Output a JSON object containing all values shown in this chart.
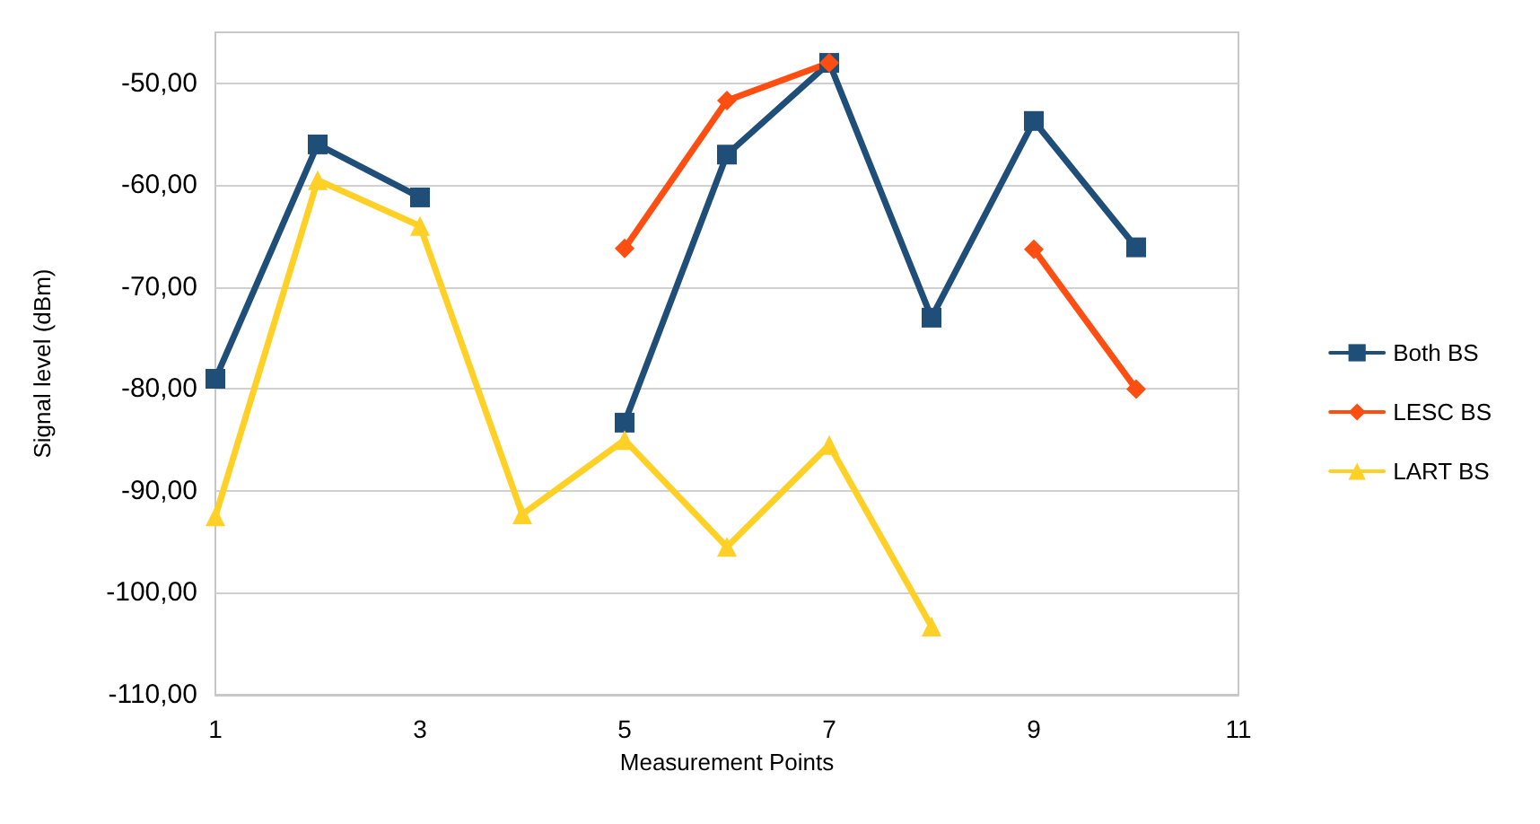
{
  "chart_data": {
    "type": "line",
    "xlabel": "Measurement Points",
    "ylabel": "Signal level (dBm)",
    "x": [
      1,
      2,
      3,
      4,
      5,
      6,
      7,
      8,
      9,
      10
    ],
    "xlim": [
      1,
      11
    ],
    "xticks": [
      1,
      3,
      5,
      7,
      9,
      11
    ],
    "ylim": [
      -110,
      -45
    ],
    "yticks": [
      {
        "value": -110,
        "label": "-110,00"
      },
      {
        "value": -100,
        "label": "-100,00"
      },
      {
        "value": -90,
        "label": "-90,00"
      },
      {
        "value": -80,
        "label": "-80,00"
      },
      {
        "value": -70,
        "label": "-70,00"
      },
      {
        "value": -60,
        "label": "-60,00"
      },
      {
        "value": -50,
        "label": "-50,00"
      }
    ],
    "grid": "y",
    "legend": "right",
    "series": [
      {
        "name": "Both BS",
        "color": "#1f4e79",
        "marker": "square",
        "values": [
          -79,
          -56,
          -61.2,
          null,
          -83.3,
          -57,
          -48,
          -73,
          -53.7,
          -66.1
        ]
      },
      {
        "name": "LESC BS",
        "color": "#ff4e12",
        "marker": "diamond",
        "values": [
          null,
          null,
          null,
          null,
          -66.2,
          -51.7,
          -48,
          null,
          -66.3,
          -80
        ]
      },
      {
        "name": "LART BS",
        "color": "#ffd025",
        "marker": "triangle",
        "values": [
          -92.5,
          -59.5,
          -64,
          -92.3,
          -85,
          -95.5,
          -85.5,
          -103.3,
          null,
          null
        ]
      }
    ]
  }
}
